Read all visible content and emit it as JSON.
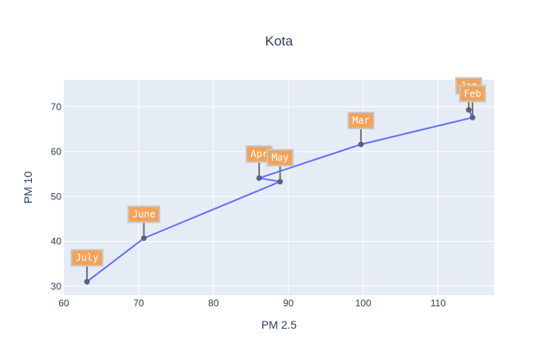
{
  "chart_data": {
    "type": "line",
    "title": "Kota",
    "xlabel": "PM 2.5",
    "ylabel": "PM 10",
    "xlim": [
      60,
      117.5
    ],
    "ylim": [
      28,
      76
    ],
    "x_ticks": [
      60,
      70,
      80,
      90,
      100,
      110
    ],
    "y_ticks": [
      30,
      40,
      50,
      60,
      70
    ],
    "grid": true,
    "series": [
      {
        "labels": [
          "Jan",
          "Feb",
          "Mar",
          "Apr",
          "May",
          "June",
          "July"
        ],
        "x": [
          114.1,
          114.6,
          99.7,
          86.1,
          88.9,
          70.7,
          63.1
        ],
        "y": [
          69.3,
          67.6,
          61.6,
          54.1,
          53.3,
          40.7,
          31.0
        ]
      }
    ],
    "line_color": "#636efa",
    "marker_color": "#5a6078",
    "annotation_bg": "#f4a259",
    "annotation_border": "#c8c8c8",
    "plot_bg": "#e5ecf6"
  }
}
